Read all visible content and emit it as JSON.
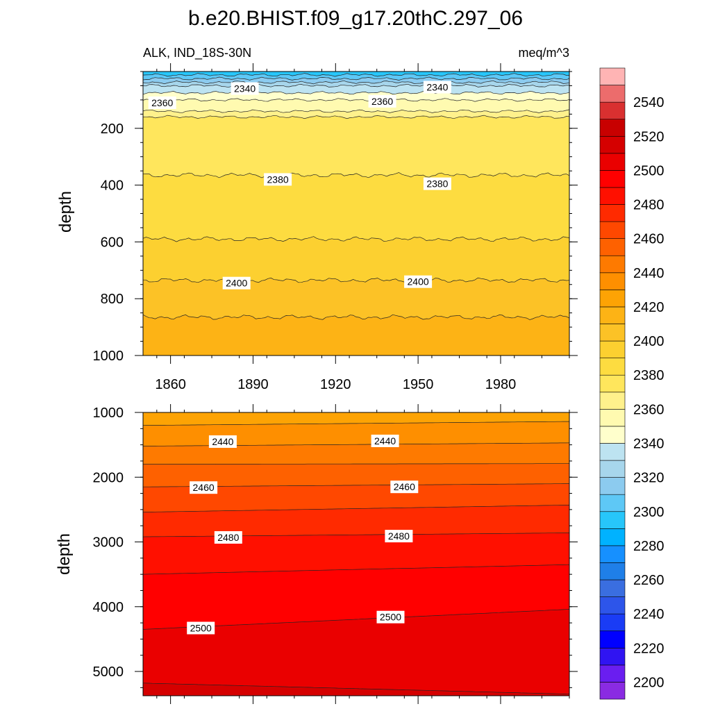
{
  "title": "b.e20.BHIST.f09_g17.20thC.297_06",
  "subtitle_left": "ALK, IND_18S-30N",
  "subtitle_right": "meq/m^3",
  "chart_data": [
    {
      "type": "contour",
      "panel": "upper",
      "ylabel": "depth",
      "xlim": [
        1850,
        2005
      ],
      "ylim": [
        1000,
        0
      ],
      "x_ticks": [
        1860,
        1890,
        1920,
        1950,
        1980
      ],
      "y_ticks": [
        200,
        400,
        600,
        800,
        1000
      ],
      "contour_lines": [
        {
          "level": 2300,
          "depth": 12
        },
        {
          "level": 2310,
          "depth": 25
        },
        {
          "level": 2320,
          "depth": 38
        },
        {
          "level": 2330,
          "depth": 50
        },
        {
          "level": 2340,
          "depth": 75
        },
        {
          "level": 2350,
          "depth": 100
        },
        {
          "level": 2360,
          "depth": 140
        },
        {
          "level": 2370,
          "depth": 160
        },
        {
          "level": 2380,
          "depth": 365
        },
        {
          "level": 2390,
          "depth": 590
        },
        {
          "level": 2400,
          "depth": 735
        },
        {
          "level": 2410,
          "depth": 865
        }
      ],
      "line_labels": [
        {
          "text": "2340",
          "x": 1887,
          "depth": 60
        },
        {
          "text": "2340",
          "x": 1957,
          "depth": 55
        },
        {
          "text": "2360",
          "x": 1857,
          "depth": 110
        },
        {
          "text": "2360",
          "x": 1937,
          "depth": 105
        },
        {
          "text": "2380",
          "x": 1899,
          "depth": 380
        },
        {
          "text": "2380",
          "x": 1957,
          "depth": 395
        },
        {
          "text": "2400",
          "x": 1884,
          "depth": 745
        },
        {
          "text": "2400",
          "x": 1950,
          "depth": 740
        }
      ]
    },
    {
      "type": "contour",
      "panel": "lower",
      "ylabel": "depth",
      "xlim": [
        1850,
        2005
      ],
      "ylim": [
        5375,
        1000
      ],
      "y_ticks": [
        1000,
        2000,
        3000,
        4000,
        5000
      ],
      "contour_lines": [
        {
          "level": 2430,
          "depth_start": 1200,
          "depth_end": 1140
        },
        {
          "level": 2440,
          "depth_start": 1520,
          "depth_end": 1470
        },
        {
          "level": 2450,
          "depth_start": 1800,
          "depth_end": 1790
        },
        {
          "level": 2460,
          "depth_start": 2150,
          "depth_end": 2100
        },
        {
          "level": 2470,
          "depth_start": 2540,
          "depth_end": 2430
        },
        {
          "level": 2480,
          "depth_start": 2920,
          "depth_end": 2860
        },
        {
          "level": 2490,
          "depth_start": 3500,
          "depth_end": 3350
        },
        {
          "level": 2500,
          "depth_start": 4350,
          "depth_end": 4040
        },
        {
          "level": 2510,
          "depth_start": 5180,
          "depth_end": 5350
        }
      ],
      "line_labels": [
        {
          "text": "2440",
          "x": 1879,
          "depth": 1450
        },
        {
          "text": "2440",
          "x": 1938,
          "depth": 1440
        },
        {
          "text": "2460",
          "x": 1872,
          "depth": 2160
        },
        {
          "text": "2460",
          "x": 1945,
          "depth": 2150
        },
        {
          "text": "2480",
          "x": 1881,
          "depth": 2930
        },
        {
          "text": "2480",
          "x": 1943,
          "depth": 2910
        },
        {
          "text": "2500",
          "x": 1871,
          "depth": 4330
        },
        {
          "text": "2500",
          "x": 1940,
          "depth": 4160
        }
      ]
    }
  ],
  "colorbar": {
    "min": 2190,
    "max": 2560,
    "step": 10,
    "tick_labels": [
      "2200",
      "2220",
      "2240",
      "2260",
      "2280",
      "2300",
      "2320",
      "2340",
      "2360",
      "2380",
      "2400",
      "2420",
      "2440",
      "2460",
      "2480",
      "2500",
      "2520",
      "2540"
    ],
    "colors": [
      "#8a2be2",
      "#6a1ef0",
      "#3014f2",
      "#0000ff",
      "#1a3cf5",
      "#2d55ea",
      "#3a6ee0",
      "#1f7fe8",
      "#1690ff",
      "#00b2ff",
      "#27c6fa",
      "#5ec8f6",
      "#8ccbef",
      "#a7d6ec",
      "#bde3f1",
      "#ffffcc",
      "#fffab0",
      "#fff18c",
      "#ffe65c",
      "#fddc40",
      "#fcd030",
      "#fcc226",
      "#fdb315",
      "#fda304",
      "#fe8f00",
      "#fe7a00",
      "#fe6100",
      "#ff4800",
      "#ff2a00",
      "#ff1000",
      "#ff0000",
      "#ea0000",
      "#d50000",
      "#c80000",
      "#d93030",
      "#ec6c6c",
      "#ffb4b4"
    ]
  }
}
